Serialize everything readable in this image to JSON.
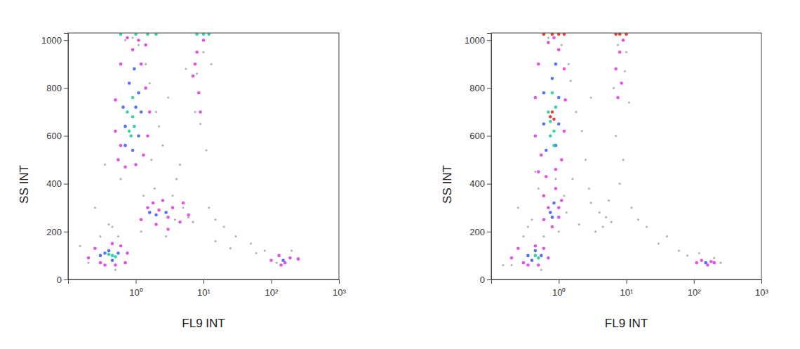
{
  "chart_data": [
    {
      "type": "scatter",
      "x_label": "FL9 INT",
      "y_label": "SS INT",
      "log": "x",
      "xlim": [
        0.1,
        1000
      ],
      "ylim": [
        0,
        1030
      ],
      "xticks": [
        {
          "value": 1,
          "label": "10⁰"
        },
        {
          "value": 10,
          "label": "10¹"
        },
        {
          "value": 100,
          "label": "10²"
        },
        {
          "value": 1000,
          "label": "10³"
        }
      ],
      "yticks": [
        0,
        200,
        400,
        600,
        800,
        1000
      ],
      "series": [
        {
          "color": "#a0a0a0",
          "x": [
            0.3,
            0.6,
            1.4,
            2.0,
            1.7,
            0.4,
            3.5,
            5,
            6,
            7,
            4,
            2.5,
            12,
            15,
            20,
            30,
            50,
            80,
            0.25,
            0.35,
            1.1,
            1.3,
            0.7,
            1.6,
            2.2,
            3,
            4.5,
            9,
            11,
            8,
            60,
            200,
            250,
            120,
            0.15,
            0.2,
            0.9,
            1.2,
            2.8,
            3.8,
            5.5,
            10,
            13,
            7.5,
            1.9,
            0.55,
            0.45,
            0.5,
            15,
            25
          ],
          "values": [
            180,
            420,
            900,
            700,
            500,
            230,
            350,
            300,
            260,
            240,
            420,
            560,
            300,
            250,
            220,
            180,
            150,
            120,
            300,
            480,
            980,
            350,
            1000,
            820,
            640,
            760,
            480,
            650,
            540,
            860,
            110,
            120,
            90,
            70,
            140,
            70,
            1010,
            200,
            180,
            250,
            880,
            950,
            900,
            700,
            380,
            180,
            220,
            40,
            160,
            130
          ]
        },
        {
          "color": "#e040e0",
          "x": [
            0.55,
            0.7,
            1.0,
            1.3,
            1.5,
            1.6,
            1.4,
            1.2,
            0.9,
            0.6,
            0.5,
            0.5,
            0.6,
            1.1,
            0.75,
            1.4,
            1.2,
            1.5,
            2,
            2.5,
            3,
            3.5,
            4.5,
            6,
            2.2,
            1.8,
            3,
            5,
            0.2,
            0.25,
            0.3,
            0.45,
            0.6,
            0.75,
            0.7,
            0.5,
            0.35,
            7,
            8,
            9,
            8.5,
            10,
            7.5,
            100,
            130,
            160,
            190,
            250,
            140
          ],
          "values": [
            500,
            470,
            480,
            520,
            600,
            700,
            800,
            900,
            960,
            900,
            750,
            620,
            560,
            1000,
            1010,
            980,
            250,
            300,
            230,
            330,
            260,
            300,
            240,
            270,
            290,
            320,
            210,
            320,
            90,
            130,
            70,
            150,
            140,
            110,
            70,
            60,
            60,
            850,
            950,
            700,
            780,
            1000,
            900,
            80,
            100,
            70,
            90,
            85,
            60
          ]
        },
        {
          "color": "#4060ff",
          "x": [
            0.7,
            0.9,
            1.1,
            1.2,
            1.1,
            0.8,
            0.65,
            0.7,
            0.95,
            1.0,
            0.3,
            0.4,
            0.55,
            0.45,
            0.35,
            2,
            2.8,
            1.6,
            150
          ],
          "values": [
            560,
            540,
            600,
            700,
            780,
            820,
            720,
            640,
            880,
            720,
            100,
            120,
            110,
            80,
            110,
            270,
            280,
            280,
            80
          ]
        },
        {
          "color": "#20d0a0",
          "x": [
            0.8,
            0.9,
            0.85,
            0.95,
            0.75,
            0.9,
            0.45,
            0.5,
            0.4,
            0.6,
            1,
            1.5,
            2,
            8,
            10,
            12
          ],
          "values": [
            620,
            680,
            600,
            640,
            700,
            760,
            100,
            95,
            105,
            1025,
            1025,
            1025,
            1025,
            1025,
            1025,
            1025
          ]
        }
      ]
    },
    {
      "type": "scatter",
      "x_label": "FL9 INT",
      "y_label": "SS INT",
      "log": "x",
      "xlim": [
        0.1,
        1000
      ],
      "ylim": [
        0,
        1030
      ],
      "xticks": [
        {
          "value": 1,
          "label": "10⁰"
        },
        {
          "value": 10,
          "label": "10¹"
        },
        {
          "value": 100,
          "label": "10²"
        },
        {
          "value": 1000,
          "label": "10³"
        }
      ],
      "yticks": [
        0,
        200,
        400,
        600,
        800,
        1000
      ],
      "series": [
        {
          "color": "#a0a0a0",
          "x": [
            0.3,
            0.45,
            1.4,
            1.8,
            2.5,
            3,
            4,
            5,
            6,
            0.25,
            1.2,
            1.6,
            2,
            3.5,
            7,
            6.5,
            9,
            10,
            12,
            15,
            20,
            40,
            60,
            80,
            200,
            250,
            120,
            0.15,
            0.2,
            0.35,
            0.6,
            1.1,
            1.3,
            2.2,
            5.5,
            8,
            0.5,
            0.55,
            1.5,
            3,
            4.5,
            30,
            0.4,
            0.7,
            9.5,
            7.5,
            11,
            2.8,
            0.9,
            1
          ],
          "values": [
            180,
            450,
            900,
            700,
            500,
            320,
            280,
            260,
            240,
            300,
            350,
            420,
            230,
            200,
            600,
            800,
            500,
            950,
            300,
            250,
            220,
            180,
            120,
            100,
            90,
            70,
            110,
            60,
            60,
            220,
            180,
            980,
            280,
            620,
            330,
            400,
            380,
            40,
            830,
            760,
            220,
            150,
            250,
            1010,
            870,
            980,
            740,
            380,
            420,
            200
          ]
        },
        {
          "color": "#e040e0",
          "x": [
            0.5,
            0.65,
            0.9,
            1.1,
            1.2,
            1.25,
            1.2,
            1.0,
            0.7,
            0.5,
            0.45,
            0.45,
            0.55,
            0.85,
            0.6,
            0.8,
            1.0,
            1.1,
            0.9,
            0.6,
            0.7,
            1.0,
            0.2,
            0.25,
            0.3,
            0.45,
            0.6,
            0.7,
            0.5,
            0.35,
            7,
            8,
            8.5,
            9,
            7.5,
            110,
            130,
            160,
            180,
            200
          ],
          "values": [
            450,
            430,
            460,
            500,
            620,
            750,
            880,
            960,
            990,
            900,
            760,
            600,
            520,
            1010,
            250,
            220,
            260,
            330,
            380,
            350,
            300,
            300,
            90,
            130,
            70,
            140,
            130,
            90,
            60,
            60,
            880,
            950,
            820,
            1000,
            760,
            70,
            80,
            60,
            75,
            70
          ]
        },
        {
          "color": "#4060ff",
          "x": [
            0.65,
            0.9,
            1.0,
            1.0,
            0.8,
            0.6,
            0.6,
            0.9,
            0.75,
            0.85,
            0.8,
            0.35,
            0.45,
            0.55,
            0.4,
            150
          ],
          "values": [
            540,
            560,
            650,
            760,
            840,
            780,
            650,
            900,
            280,
            320,
            260,
            100,
            120,
            100,
            80,
            70
          ]
        },
        {
          "color": "#20d0a0",
          "x": [
            0.75,
            0.85,
            0.7,
            0.9,
            0.8,
            0.75,
            0.45,
            0.5,
            0.85
          ],
          "values": [
            600,
            620,
            700,
            720,
            780,
            660,
            100,
            90,
            560
          ]
        },
        {
          "color": "#e03020",
          "x": [
            0.75,
            0.8,
            0.85,
            0.6,
            0.8,
            1,
            1.2,
            7,
            8,
            10
          ],
          "values": [
            680,
            700,
            670,
            1025,
            1025,
            1025,
            1025,
            1025,
            1025,
            1025
          ]
        }
      ]
    }
  ]
}
